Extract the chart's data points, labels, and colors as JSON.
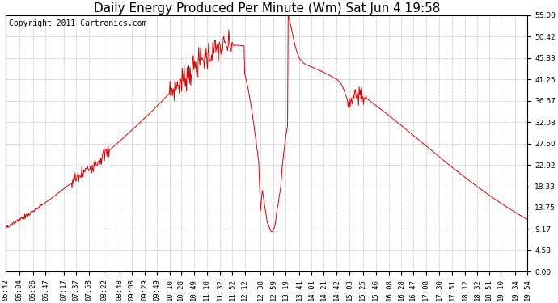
{
  "title": "Daily Energy Produced Per Minute (Wm) Sat Jun 4 19:58",
  "copyright": "Copyright 2011 Cartronics.com",
  "line_color": "#dd0000",
  "bg_color": "#ffffff",
  "plot_bg_color": "#ffffff",
  "grid_color": "#bbbbbb",
  "yticks": [
    0.0,
    4.58,
    9.17,
    13.75,
    18.33,
    22.92,
    27.5,
    32.08,
    36.67,
    41.25,
    45.83,
    50.42,
    55.0
  ],
  "ymax": 55.0,
  "ymin": 0.0,
  "xtick_labels": [
    "05:42",
    "06:04",
    "06:26",
    "06:47",
    "07:17",
    "07:37",
    "07:58",
    "08:22",
    "08:48",
    "09:08",
    "09:29",
    "09:49",
    "10:10",
    "10:28",
    "10:49",
    "11:10",
    "11:32",
    "11:52",
    "12:12",
    "12:38",
    "12:59",
    "13:19",
    "13:41",
    "14:01",
    "14:21",
    "14:42",
    "15:03",
    "15:25",
    "15:46",
    "16:08",
    "16:28",
    "16:47",
    "17:08",
    "17:30",
    "17:51",
    "18:12",
    "18:32",
    "18:51",
    "19:10",
    "19:34",
    "19:54"
  ],
  "title_fontsize": 11,
  "copyright_fontsize": 7,
  "tick_fontsize": 6.5
}
